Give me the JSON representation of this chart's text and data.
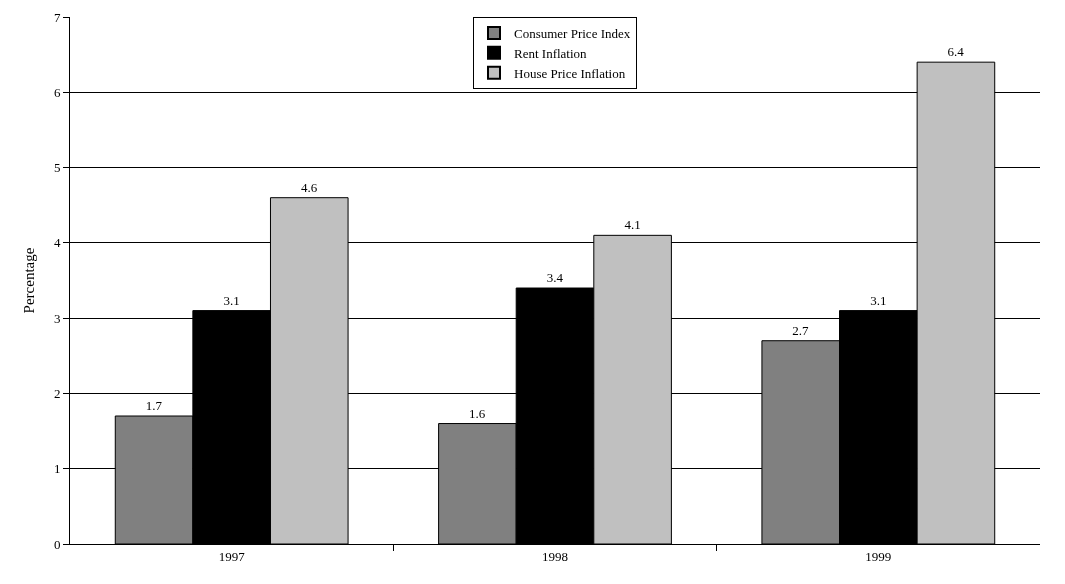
{
  "chart_data": {
    "type": "bar",
    "ylabel": "Percentage",
    "categories": [
      "1997",
      "1998",
      "1999"
    ],
    "series": [
      {
        "name": "Consumer Price Index",
        "color": "#808080",
        "values": [
          1.7,
          1.6,
          2.7
        ]
      },
      {
        "name": "Rent Inflation",
        "color": "#000000",
        "values": [
          3.1,
          3.4,
          3.1
        ]
      },
      {
        "name": "House Price Inflation",
        "color": "#c0c0c0",
        "values": [
          4.6,
          4.1,
          6.4
        ]
      }
    ],
    "ylim": [
      0,
      7
    ],
    "yticks": [
      0,
      1,
      2,
      3,
      4,
      5,
      6,
      7
    ],
    "grid": "y",
    "legend": "top",
    "data_labels": true
  }
}
